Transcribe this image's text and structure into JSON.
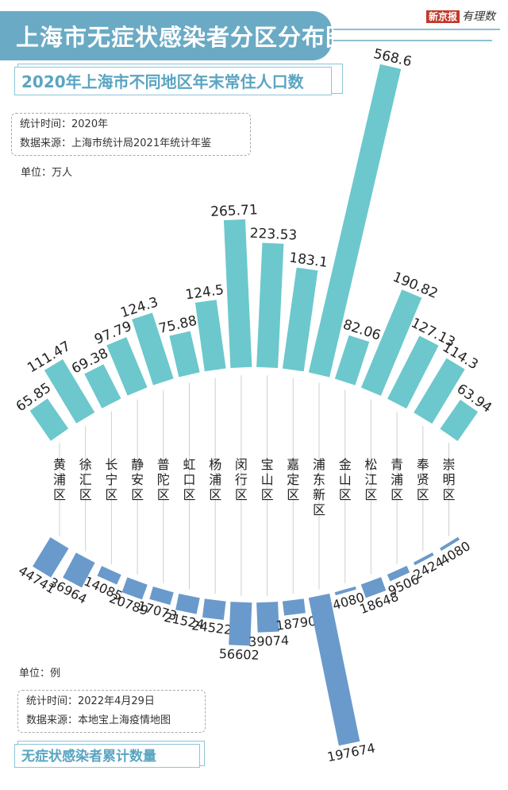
{
  "title": "上海市无症状感染者分区分布图",
  "brand": {
    "name": "新京报",
    "column": "有理数"
  },
  "population_panel": {
    "subtitle": "2020年上海市不同地区年末常住人口数",
    "stat_time": "统计时间：2020年",
    "source": "数据来源：上海市统计局2021年统计年鉴",
    "unit": "单位：万人"
  },
  "cases_panel": {
    "subtitle": "无症状感染者累计数量",
    "stat_time": "统计时间：2022年4月29日",
    "source": "数据来源：本地宝上海疫情地图",
    "unit": "单位：例"
  },
  "colors": {
    "population": "#6cc8cc",
    "cases": "#6a9acb",
    "title": "#6aaac4"
  },
  "chart_data": [
    {
      "type": "bar",
      "title": "2020年上海市不同地区年末常住人口数",
      "unit": "万人",
      "categories": [
        "黄浦区",
        "徐汇区",
        "长宁区",
        "静安区",
        "普陀区",
        "虹口区",
        "杨浦区",
        "闵行区",
        "宝山区",
        "嘉定区",
        "浦东新区",
        "金山区",
        "松江区",
        "青浦区",
        "奉贤区",
        "崇明区"
      ],
      "values": [
        "65.85",
        "111.47",
        "69.38",
        "97.79",
        "124.3",
        "75.88",
        "124.5",
        "265.71",
        "223.53",
        "183.1",
        "568.6",
        "82.06",
        "190.82",
        "127.13",
        "114.3",
        "63.94"
      ]
    },
    {
      "type": "bar",
      "title": "无症状感染者累计数量",
      "unit": "例",
      "categories": [
        "黄浦区",
        "徐汇区",
        "长宁区",
        "静安区",
        "普陀区",
        "虹口区",
        "杨浦区",
        "闵行区",
        "宝山区",
        "嘉定区",
        "浦东新区",
        "金山区",
        "松江区",
        "青浦区",
        "奉贤区",
        "崇明区"
      ],
      "values": [
        "44741",
        "36964",
        "14085",
        "20789",
        "17073",
        "21524",
        "24522",
        "56602",
        "39074",
        "18790",
        "197674",
        "4080",
        "18648",
        "9506",
        "2424",
        "4080"
      ]
    }
  ]
}
